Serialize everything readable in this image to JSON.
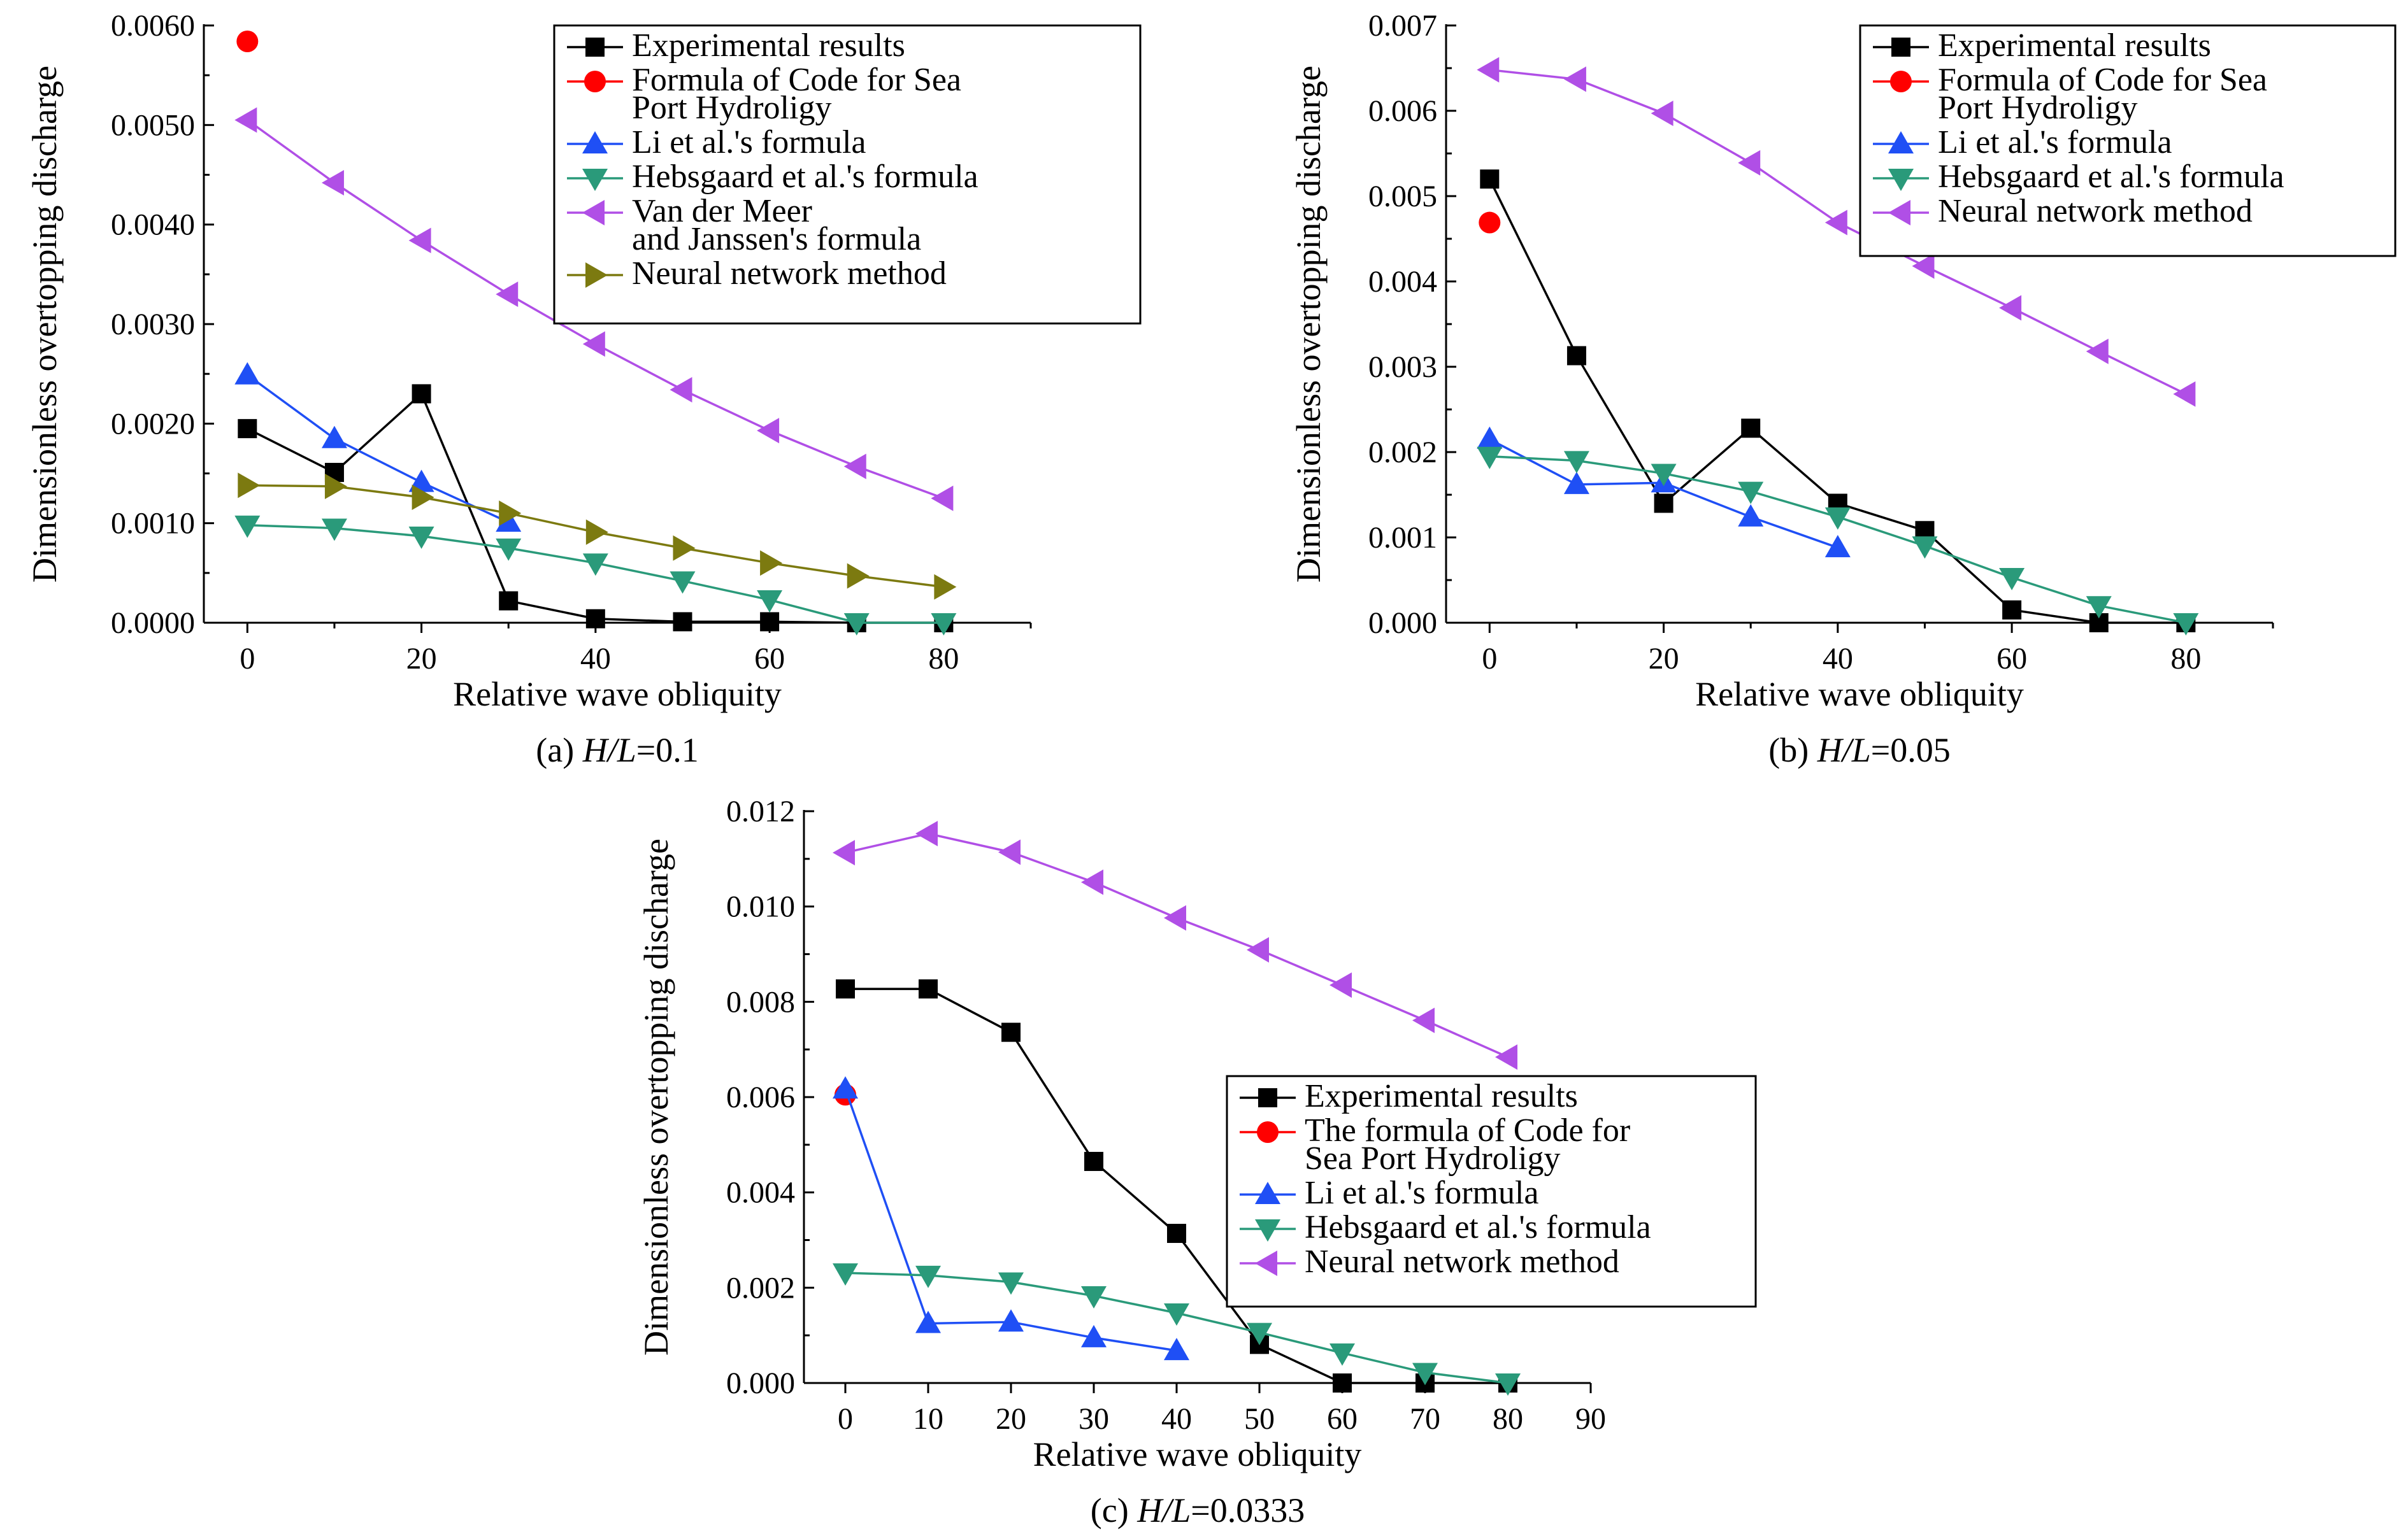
{
  "colors": {
    "experimental": "#000000",
    "code": "#ff0000",
    "li": "#1f4ff5",
    "hebsgaard": "#2a9a7a",
    "vdm": "#b04fe6",
    "neural": "#7c7a10"
  },
  "chart_data": [
    {
      "type": "line",
      "caption": {
        "prefix": "(a) ",
        "italic": "H/L",
        "suffix": "=0.1"
      },
      "xlabel": "Relative wave obliquity",
      "ylabel": "Dimensionless overtopping discharge",
      "xlim": [
        -5,
        90
      ],
      "ylim": [
        0,
        0.006
      ],
      "xticks": [
        "0",
        "20",
        "40",
        "60",
        "80"
      ],
      "yticks": [
        "0.0000",
        "0.0010",
        "0.0020",
        "0.0030",
        "0.0040",
        "0.0050",
        "0.0060"
      ],
      "legend_position": "top-right",
      "series": [
        {
          "name": "Experimental results",
          "color_key": "experimental",
          "marker": "square",
          "x": [
            0,
            10,
            20,
            30,
            40,
            50,
            60,
            70,
            80
          ],
          "y": [
            0.00195,
            0.00151,
            0.0023,
            0.00022,
            4e-05,
            1e-05,
            1e-05,
            0.0,
            0.0
          ]
        },
        {
          "name": "Formula of Code for Sea Port Hydroligy",
          "color_key": "code",
          "marker": "circle",
          "x": [
            0
          ],
          "y": [
            0.00584
          ]
        },
        {
          "name": "Li et al.'s formula",
          "color_key": "li",
          "marker": "triangle-up",
          "x": [
            0,
            10,
            20,
            30
          ],
          "y": [
            0.00249,
            0.00185,
            0.00141,
            0.00101
          ]
        },
        {
          "name": "Hebsgaard et al.'s formula",
          "color_key": "hebsgaard",
          "marker": "triangle-down",
          "x": [
            0,
            10,
            20,
            30,
            40,
            50,
            60,
            70,
            80
          ],
          "y": [
            0.00098,
            0.00095,
            0.00087,
            0.00075,
            0.0006,
            0.00042,
            0.00023,
            0.0,
            0.0
          ]
        },
        {
          "name": "Van der Meer and Janssen's formula",
          "color_key": "vdm",
          "marker": "triangle-left",
          "x": [
            0,
            10,
            20,
            30,
            40,
            50,
            60,
            70,
            80
          ],
          "y": [
            0.00505,
            0.00442,
            0.00384,
            0.0033,
            0.0028,
            0.00234,
            0.00193,
            0.00157,
            0.00125
          ]
        },
        {
          "name": "Neural network method",
          "color_key": "neural",
          "marker": "triangle-right",
          "x": [
            0,
            10,
            20,
            30,
            40,
            50,
            60,
            70,
            80
          ],
          "y": [
            0.00138,
            0.00137,
            0.00126,
            0.0011,
            0.00091,
            0.00075,
            0.0006,
            0.00047,
            0.00036
          ]
        }
      ]
    },
    {
      "type": "line",
      "caption": {
        "prefix": "(b) ",
        "italic": "H/L",
        "suffix": "=0.05"
      },
      "xlabel": "Relative wave obliquity",
      "ylabel": "Dimensionless overtopping discharge",
      "xlim": [
        -5,
        90
      ],
      "ylim": [
        0,
        0.007
      ],
      "xticks": [
        "0",
        "20",
        "40",
        "60",
        "80"
      ],
      "yticks": [
        "0.000",
        "0.001",
        "0.002",
        "0.003",
        "0.004",
        "0.005",
        "0.006",
        "0.007"
      ],
      "legend_position": "top-right",
      "series": [
        {
          "name": "Experimental results",
          "color_key": "experimental",
          "marker": "square",
          "x": [
            0,
            10,
            20,
            30,
            40,
            50,
            60,
            70,
            80
          ],
          "y": [
            0.0052,
            0.00313,
            0.0014,
            0.00228,
            0.0014,
            0.00108,
            0.00015,
            0.0,
            0.0
          ]
        },
        {
          "name": "Formula of Code for Sea Port Hydroligy",
          "color_key": "code",
          "marker": "circle",
          "x": [
            0
          ],
          "y": [
            0.00469
          ]
        },
        {
          "name": "Li et al.'s formula",
          "color_key": "li",
          "marker": "triangle-up",
          "x": [
            0,
            10,
            20,
            30,
            40
          ],
          "y": [
            0.00215,
            0.00162,
            0.00164,
            0.00124,
            0.00088
          ]
        },
        {
          "name": "Hebsgaard et al.'s formula",
          "color_key": "hebsgaard",
          "marker": "triangle-down",
          "x": [
            0,
            10,
            20,
            30,
            40,
            50,
            60,
            70,
            80
          ],
          "y": [
            0.00195,
            0.0019,
            0.00175,
            0.00154,
            0.00124,
            0.0009,
            0.00053,
            0.0002,
            0.0
          ]
        },
        {
          "name": "Neural network method",
          "color_key": "vdm",
          "marker": "triangle-left",
          "x": [
            0,
            10,
            20,
            30,
            40,
            50,
            60,
            70,
            80
          ],
          "y": [
            0.00648,
            0.00637,
            0.00597,
            0.00539,
            0.00469,
            0.00418,
            0.00369,
            0.00318,
            0.00268
          ]
        }
      ]
    },
    {
      "type": "line",
      "caption": {
        "prefix": "(c) ",
        "italic": "H/L",
        "suffix": "=0.0333"
      },
      "xlabel": "Relative wave obliquity",
      "ylabel": "Dimensionless overtopping discharge",
      "xlim": [
        -5,
        90
      ],
      "ylim": [
        0,
        0.012
      ],
      "xticks": [
        "0",
        "10",
        "20",
        "30",
        "40",
        "50",
        "60",
        "70",
        "80",
        "90"
      ],
      "yticks": [
        "0.000",
        "0.002",
        "0.004",
        "0.006",
        "0.008",
        "0.010",
        "0.012"
      ],
      "legend_position": "bottom-right",
      "series": [
        {
          "name": "Experimental results",
          "color_key": "experimental",
          "marker": "square",
          "x": [
            0,
            10,
            20,
            30,
            40,
            50,
            60,
            70,
            80
          ],
          "y": [
            0.00827,
            0.00827,
            0.00736,
            0.00465,
            0.00314,
            0.00081,
            0.0,
            0.0,
            0.0
          ]
        },
        {
          "name": "The formula of Code for Sea Port Hydroligy",
          "color_key": "code",
          "marker": "circle",
          "x": [
            0
          ],
          "y": [
            0.00605
          ]
        },
        {
          "name": "Li et al.'s formula",
          "color_key": "li",
          "marker": "triangle-up",
          "x": [
            0,
            10,
            20,
            30,
            40
          ],
          "y": [
            0.00617,
            0.00125,
            0.00128,
            0.00095,
            0.00068
          ]
        },
        {
          "name": "Hebsgaard et al.'s formula",
          "color_key": "hebsgaard",
          "marker": "triangle-down",
          "x": [
            0,
            10,
            20,
            30,
            40,
            50,
            60,
            70,
            80
          ],
          "y": [
            0.00231,
            0.00226,
            0.00212,
            0.00183,
            0.00147,
            0.00106,
            0.00063,
            0.00022,
            0.0
          ]
        },
        {
          "name": "Neural network method",
          "color_key": "vdm",
          "marker": "triangle-left",
          "x": [
            0,
            10,
            20,
            30,
            40,
            50,
            60,
            70,
            80
          ],
          "y": [
            0.01113,
            0.01153,
            0.01114,
            0.01051,
            0.00976,
            0.00909,
            0.00835,
            0.00761,
            0.00684
          ]
        }
      ]
    }
  ]
}
